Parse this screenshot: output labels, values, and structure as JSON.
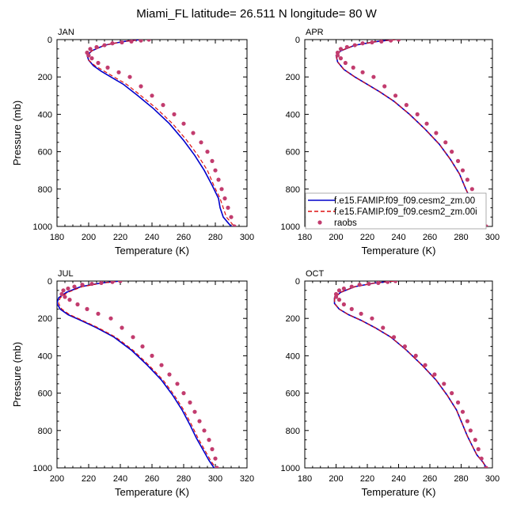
{
  "figure_title": "Miami_FL  latitude= 26.511 N longitude= 80 W",
  "colors": {
    "model_00": "#0000cc",
    "model_00i": "#dd1111",
    "raobs": "#c23c6e"
  },
  "legend": {
    "items": [
      {
        "label": "f.e15.FAMIP.f09_f09.cesm2_zm.00",
        "style": "solid-line"
      },
      {
        "label": "f.e15.FAMIP.f09_f09.cesm2_zm.00i",
        "style": "dashed-line"
      },
      {
        "label": "raobs",
        "style": "dot"
      }
    ],
    "placement": "lower-right of APR panel"
  },
  "chart_data": [
    {
      "type": "line",
      "panel_label": "JAN",
      "xlabel": "Temperature (K)",
      "ylabel": "Pressure (mb)",
      "xlim": [
        180,
        300
      ],
      "ylim": [
        1000,
        0
      ],
      "xticks": [
        180,
        200,
        220,
        240,
        260,
        280,
        300
      ],
      "yticks": [
        0,
        200,
        400,
        600,
        800,
        1000
      ],
      "series": [
        {
          "name": "f.e15.FAMIP.f09_f09.cesm2_zm.00",
          "style": "solid",
          "x": [
            233,
            222,
            210,
            202,
            199,
            200,
            203,
            208,
            214,
            222,
            231,
            241,
            251,
            260,
            267,
            273,
            278,
            282,
            283,
            285,
            288,
            291
          ],
          "y": [
            0,
            10,
            30,
            60,
            85,
            110,
            140,
            170,
            200,
            240,
            300,
            370,
            450,
            540,
            620,
            700,
            780,
            850,
            900,
            950,
            980,
            1010
          ]
        },
        {
          "name": "f.e15.FAMIP.f09_f09.cesm2_zm.00i",
          "style": "dashed",
          "x": [
            234,
            222,
            210,
            202,
            199,
            200,
            204,
            210,
            216,
            224,
            233,
            243,
            253,
            262,
            269,
            275,
            279,
            283,
            285,
            287,
            290,
            293
          ],
          "y": [
            0,
            10,
            30,
            60,
            85,
            110,
            140,
            170,
            200,
            240,
            300,
            370,
            450,
            540,
            620,
            700,
            780,
            850,
            900,
            950,
            980,
            1010
          ]
        },
        {
          "name": "raobs",
          "style": "points",
          "x": [
            238,
            233,
            227,
            221,
            215,
            210,
            205,
            201,
            199,
            200,
            202,
            206,
            212,
            219,
            226,
            233,
            240,
            247,
            254,
            260,
            266,
            271,
            275,
            278,
            280,
            282,
            284,
            286,
            288,
            290,
            292
          ],
          "y": [
            0,
            5,
            10,
            15,
            20,
            30,
            40,
            50,
            70,
            85,
            100,
            125,
            150,
            175,
            200,
            250,
            300,
            350,
            400,
            450,
            500,
            550,
            600,
            650,
            700,
            750,
            800,
            850,
            900,
            950,
            1000
          ]
        }
      ]
    },
    {
      "type": "line",
      "panel_label": "APR",
      "xlabel": "Temperature (K)",
      "ylabel": "",
      "xlim": [
        180,
        300
      ],
      "ylim": [
        1000,
        0
      ],
      "xticks": [
        180,
        200,
        220,
        240,
        260,
        280,
        300
      ],
      "yticks": [
        0,
        200,
        400,
        600,
        800,
        1000
      ],
      "series": [
        {
          "name": "f.e15.FAMIP.f09_f09.cesm2_zm.00",
          "style": "solid",
          "x": [
            238,
            226,
            212,
            203,
            200,
            201,
            205,
            212,
            220,
            228,
            237,
            247,
            257,
            266,
            273,
            279,
            283,
            287,
            290,
            293,
            296
          ],
          "y": [
            0,
            10,
            30,
            60,
            85,
            120,
            160,
            200,
            240,
            280,
            330,
            400,
            480,
            560,
            640,
            720,
            800,
            870,
            920,
            970,
            1010
          ]
        },
        {
          "name": "f.e15.FAMIP.f09_f09.cesm2_zm.00i",
          "style": "dashed",
          "x": [
            238,
            226,
            212,
            203,
            200,
            201,
            205,
            212,
            220,
            228,
            237,
            247,
            257,
            266,
            273,
            279,
            283,
            287,
            290,
            293,
            296
          ],
          "y": [
            0,
            10,
            30,
            60,
            85,
            120,
            160,
            200,
            240,
            280,
            330,
            400,
            480,
            560,
            640,
            720,
            800,
            870,
            920,
            970,
            1010
          ]
        },
        {
          "name": "raobs",
          "style": "points",
          "x": [
            240,
            235,
            229,
            223,
            217,
            212,
            207,
            203,
            201,
            201,
            203,
            206,
            211,
            217,
            224,
            231,
            238,
            245,
            252,
            258,
            264,
            270,
            274,
            278,
            281,
            284,
            287,
            290,
            292,
            294,
            296
          ],
          "y": [
            0,
            5,
            10,
            15,
            20,
            30,
            40,
            50,
            70,
            85,
            100,
            125,
            150,
            175,
            200,
            250,
            300,
            350,
            400,
            450,
            500,
            550,
            600,
            650,
            700,
            750,
            800,
            850,
            900,
            950,
            1000
          ]
        }
      ]
    },
    {
      "type": "line",
      "panel_label": "JUL",
      "xlabel": "Temperature (K)",
      "ylabel": "Pressure (mb)",
      "xlim": [
        200,
        320
      ],
      "ylim": [
        1000,
        0
      ],
      "xticks": [
        200,
        220,
        240,
        260,
        280,
        300,
        320
      ],
      "yticks": [
        0,
        200,
        400,
        600,
        800,
        1000
      ],
      "series": [
        {
          "name": "f.e15.FAMIP.f09_f09.cesm2_zm.00",
          "style": "solid",
          "x": [
            240,
            228,
            215,
            206,
            201,
            200,
            202,
            207,
            215,
            225,
            236,
            247,
            257,
            266,
            273,
            279,
            284,
            288,
            292,
            296,
            300
          ],
          "y": [
            0,
            10,
            30,
            60,
            90,
            120,
            150,
            180,
            210,
            250,
            300,
            370,
            450,
            530,
            610,
            690,
            770,
            840,
            900,
            960,
            1010
          ]
        },
        {
          "name": "f.e15.FAMIP.f09_f09.cesm2_zm.00i",
          "style": "dashed",
          "x": [
            241,
            229,
            216,
            207,
            202,
            201,
            203,
            208,
            216,
            226,
            237,
            248,
            258,
            267,
            274,
            280,
            285,
            289,
            293,
            297,
            301
          ],
          "y": [
            0,
            10,
            30,
            60,
            90,
            120,
            150,
            180,
            210,
            250,
            300,
            370,
            450,
            530,
            610,
            690,
            770,
            840,
            900,
            960,
            1010
          ]
        },
        {
          "name": "raobs",
          "style": "points",
          "x": [
            240,
            235,
            228,
            222,
            216,
            211,
            207,
            204,
            203,
            205,
            208,
            213,
            219,
            226,
            234,
            241,
            248,
            254,
            260,
            266,
            271,
            276,
            280,
            284,
            287,
            290,
            293,
            296,
            298,
            300,
            301
          ],
          "y": [
            0,
            5,
            10,
            15,
            20,
            30,
            40,
            50,
            70,
            85,
            100,
            125,
            150,
            175,
            200,
            250,
            300,
            350,
            400,
            450,
            500,
            550,
            600,
            650,
            700,
            750,
            800,
            850,
            900,
            950,
            1000
          ]
        }
      ]
    },
    {
      "type": "line",
      "panel_label": "OCT",
      "xlabel": "Temperature (K)",
      "ylabel": "",
      "xlim": [
        180,
        300
      ],
      "ylim": [
        1000,
        0
      ],
      "xticks": [
        180,
        200,
        220,
        240,
        260,
        280,
        300
      ],
      "yticks": [
        0,
        200,
        400,
        600,
        800,
        1000
      ],
      "series": [
        {
          "name": "f.e15.FAMIP.f09_f09.cesm2_zm.00",
          "style": "solid",
          "x": [
            237,
            225,
            212,
            203,
            199,
            199,
            202,
            208,
            216,
            225,
            235,
            245,
            255,
            264,
            271,
            277,
            281,
            284,
            287,
            290,
            294,
            297
          ],
          "y": [
            0,
            10,
            30,
            60,
            90,
            120,
            150,
            180,
            210,
            250,
            300,
            370,
            450,
            530,
            610,
            690,
            770,
            830,
            880,
            930,
            970,
            1010
          ]
        },
        {
          "name": "f.e15.FAMIP.f09_f09.cesm2_zm.00i",
          "style": "dashed",
          "x": [
            237,
            225,
            212,
            203,
            199,
            199,
            202,
            208,
            216,
            225,
            235,
            245,
            255,
            264,
            271,
            277,
            281,
            284,
            287,
            290,
            294,
            297
          ],
          "y": [
            0,
            10,
            30,
            60,
            90,
            120,
            150,
            180,
            210,
            250,
            300,
            370,
            450,
            530,
            610,
            690,
            770,
            830,
            880,
            930,
            970,
            1010
          ]
        },
        {
          "name": "raobs",
          "style": "points",
          "x": [
            238,
            233,
            227,
            221,
            215,
            210,
            205,
            202,
            200,
            200,
            202,
            205,
            210,
            216,
            223,
            230,
            237,
            244,
            251,
            257,
            263,
            269,
            274,
            278,
            281,
            284,
            286,
            289,
            291,
            293,
            296
          ],
          "y": [
            0,
            5,
            10,
            15,
            20,
            30,
            40,
            50,
            70,
            85,
            100,
            125,
            150,
            175,
            200,
            250,
            300,
            350,
            400,
            450,
            500,
            550,
            600,
            650,
            700,
            750,
            800,
            850,
            900,
            950,
            1000
          ]
        }
      ]
    }
  ]
}
